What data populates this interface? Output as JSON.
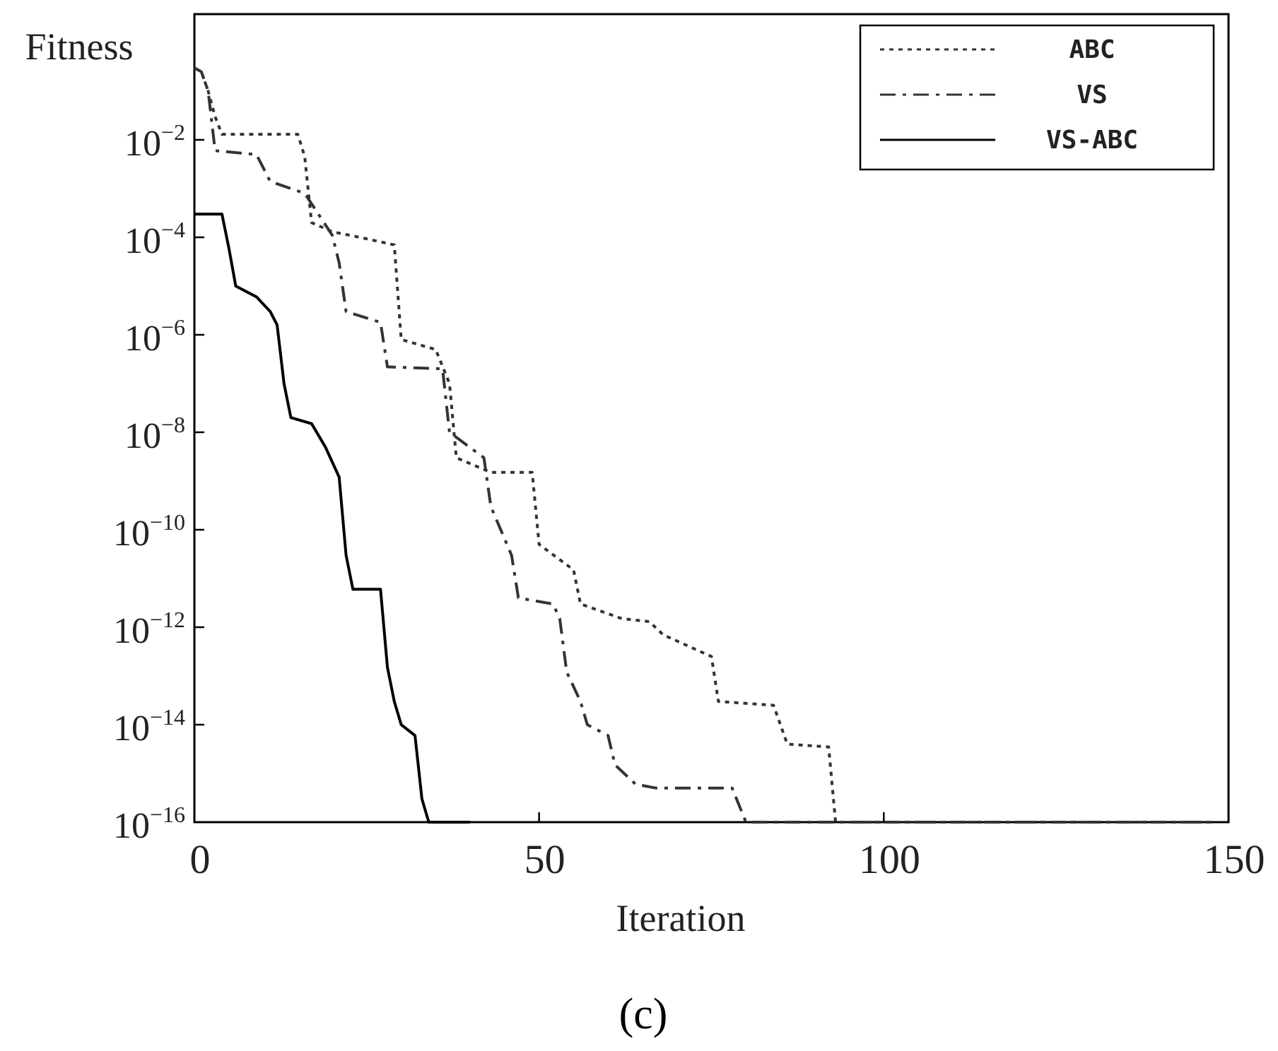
{
  "chart_data": {
    "type": "line",
    "ylabel": "Fitness",
    "xlabel": "Iteration",
    "panel_label": "(c)",
    "xlim": [
      0,
      150
    ],
    "ylim": [
      1e-16,
      1
    ],
    "y_scale": "log",
    "x_ticks": [
      0,
      50,
      100,
      150
    ],
    "y_ticks": [
      {
        "base": "10",
        "exp": "−2",
        "value": 0.01
      },
      {
        "base": "10",
        "exp": "−4",
        "value": 0.0001
      },
      {
        "base": "10",
        "exp": "−6",
        "value": 1e-06
      },
      {
        "base": "10",
        "exp": "−8",
        "value": 1e-08
      },
      {
        "base": "10",
        "exp": "−10",
        "value": 1e-10
      },
      {
        "base": "10",
        "exp": "−12",
        "value": 1e-12
      },
      {
        "base": "10",
        "exp": "−14",
        "value": 1e-14
      },
      {
        "base": "10",
        "exp": "−16",
        "value": 1e-16
      }
    ],
    "legend_position": "top-right",
    "grid": false,
    "series": [
      {
        "name": "ABC",
        "color": "#333333",
        "style": "dotted",
        "points": [
          [
            0,
            0.3
          ],
          [
            1,
            0.25
          ],
          [
            2,
            0.1
          ],
          [
            3,
            0.03
          ],
          [
            4,
            0.013
          ],
          [
            15,
            0.013
          ],
          [
            16,
            0.0045
          ],
          [
            17,
            0.0002
          ],
          [
            20,
            0.00013
          ],
          [
            24,
            0.0001
          ],
          [
            29,
            7e-05
          ],
          [
            30,
            8e-07
          ],
          [
            35,
            5e-07
          ],
          [
            37,
            1e-07
          ],
          [
            38,
            3e-09
          ],
          [
            43,
            1.5e-09
          ],
          [
            49,
            1.5e-09
          ],
          [
            50,
            5e-11
          ],
          [
            55,
            1.5e-11
          ],
          [
            56,
            3e-12
          ],
          [
            62,
            1.5e-12
          ],
          [
            66,
            1.3e-12
          ],
          [
            68,
            7e-13
          ],
          [
            75,
            2.5e-13
          ],
          [
            76,
            3e-14
          ],
          [
            84,
            2.5e-14
          ],
          [
            86,
            4e-15
          ],
          [
            92,
            3.5e-15
          ],
          [
            93,
            1e-16
          ],
          [
            148,
            1e-16
          ]
        ]
      },
      {
        "name": "VS",
        "color": "#333333",
        "style": "dashdot",
        "points": [
          [
            0,
            0.3
          ],
          [
            1,
            0.25
          ],
          [
            2,
            0.1
          ],
          [
            3,
            0.006
          ],
          [
            9,
            0.005
          ],
          [
            11,
            0.0014
          ],
          [
            16,
            0.0008
          ],
          [
            20,
            0.00011
          ],
          [
            21,
            3e-05
          ],
          [
            22,
            3e-06
          ],
          [
            27,
            1.8e-06
          ],
          [
            28,
            2.2e-07
          ],
          [
            36,
            2e-07
          ],
          [
            37,
            1e-08
          ],
          [
            42,
            3e-09
          ],
          [
            43,
            3e-10
          ],
          [
            46,
            3e-11
          ],
          [
            47,
            4e-12
          ],
          [
            52,
            3e-12
          ],
          [
            53,
            1.5e-12
          ],
          [
            54,
            1.2e-13
          ],
          [
            56,
            3e-14
          ],
          [
            57,
            1e-14
          ],
          [
            60,
            6e-15
          ],
          [
            61,
            1.5e-15
          ],
          [
            64,
            6e-16
          ],
          [
            67,
            5e-16
          ],
          [
            78,
            5e-16
          ],
          [
            80,
            1e-16
          ],
          [
            148,
            1e-16
          ]
        ]
      },
      {
        "name": "VS-ABC",
        "color": "#000000",
        "style": "solid",
        "points": [
          [
            0,
            0.0003
          ],
          [
            4,
            0.0003
          ],
          [
            5,
            6e-05
          ],
          [
            6,
            1e-05
          ],
          [
            9,
            6e-06
          ],
          [
            11,
            3e-06
          ],
          [
            12,
            1.6e-06
          ],
          [
            13,
            1e-07
          ],
          [
            14,
            2e-08
          ],
          [
            17,
            1.5e-08
          ],
          [
            19,
            5e-09
          ],
          [
            21,
            1.2e-09
          ],
          [
            22,
            3e-11
          ],
          [
            23,
            6e-12
          ],
          [
            27,
            6e-12
          ],
          [
            28,
            1.5e-13
          ],
          [
            29,
            3e-14
          ],
          [
            30,
            1e-14
          ],
          [
            32,
            6e-15
          ],
          [
            33,
            3e-16
          ],
          [
            34,
            1e-16
          ],
          [
            40,
            1e-16
          ]
        ]
      }
    ]
  }
}
